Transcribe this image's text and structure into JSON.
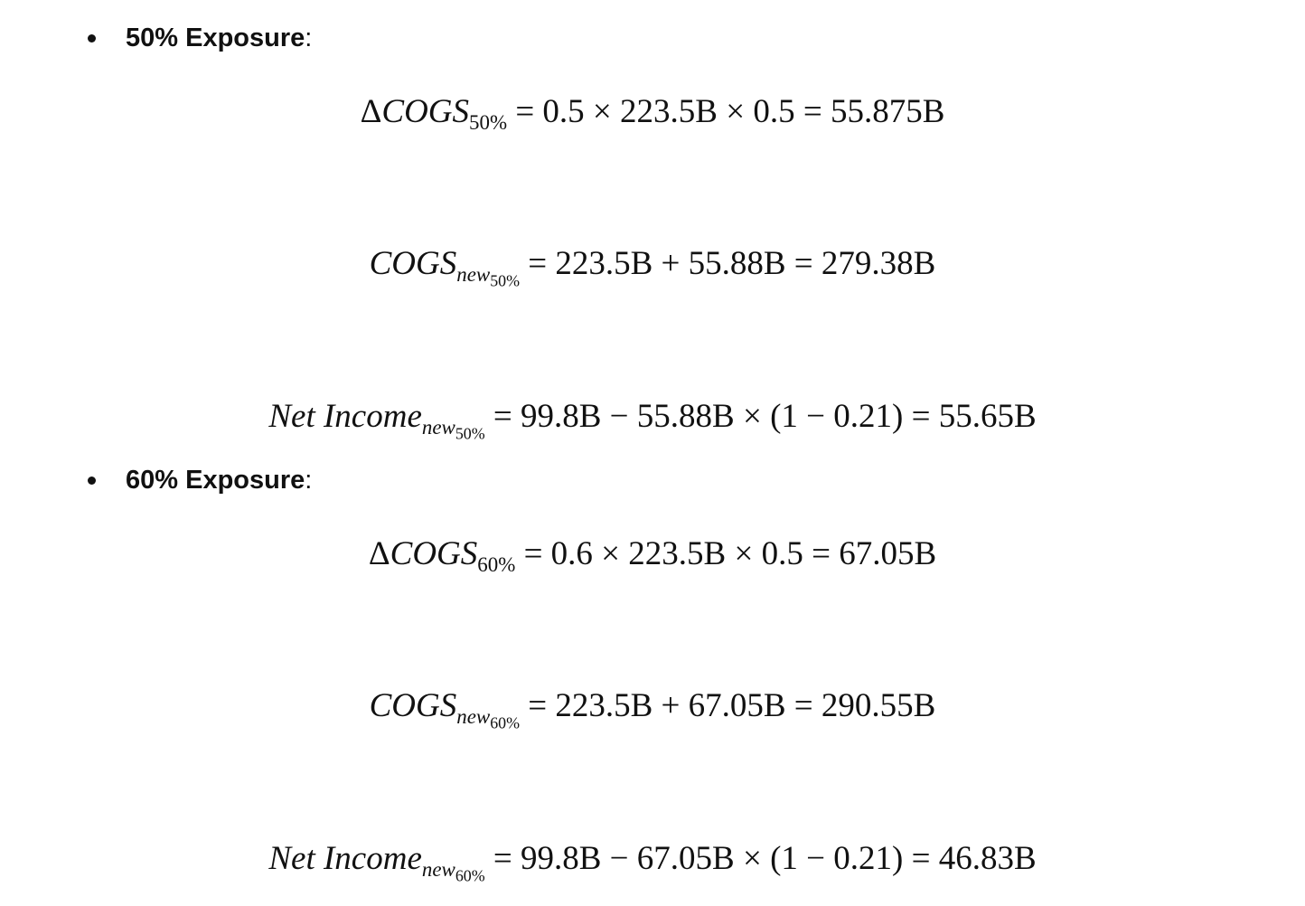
{
  "sections": [
    {
      "label": "50% Exposure",
      "colon": ":",
      "delta_cogs": {
        "delta": "Δ",
        "var": "COGS",
        "sub": "50%",
        "rhs": " = 0.5 × 223.5B × 0.5 = 55.875B"
      },
      "cogs_new": {
        "var": "COGS",
        "sub": "new",
        "subsub": "50%",
        "rhs": " = 223.5B + 55.88B = 279.38B"
      },
      "net_income": {
        "var": "Net Income",
        "sub": "new",
        "subsub": "50%",
        "rhs": " = 99.8B − 55.88B × (1 − 0.21) = 55.65B"
      }
    },
    {
      "label": "60% Exposure",
      "colon": ":",
      "delta_cogs": {
        "delta": "Δ",
        "var": "COGS",
        "sub": "60%",
        "rhs": " = 0.6 × 223.5B × 0.5 = 67.05B"
      },
      "cogs_new": {
        "var": "COGS",
        "sub": "new",
        "subsub": "60%",
        "rhs": " = 223.5B + 67.05B = 290.55B"
      },
      "net_income": {
        "var": "Net Income",
        "sub": "new",
        "subsub": "60%",
        "rhs": " = 99.8B − 67.05B × (1 − 0.21) = 46.83B"
      }
    }
  ]
}
